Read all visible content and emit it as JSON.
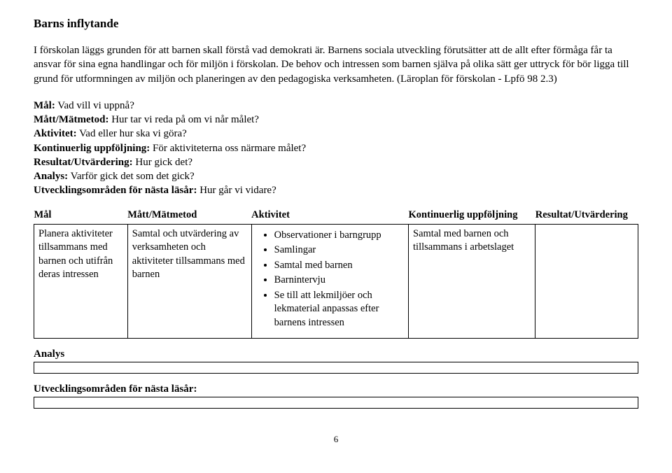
{
  "title": "Barns inflytande",
  "intro": "I förskolan läggs grunden för att barnen skall förstå vad demokrati är. Barnens sociala utveckling förutsätter att de allt efter förmåga får ta ansvar för sina egna handlingar och för miljön i förskolan. De behov och intressen som barnen själva på olika sätt ger uttryck för bör ligga till grund för utformningen av miljön och planeringen av den pedagogiska verksamheten. (Läroplan för förskolan - Lpfö 98 2.3)",
  "definitions": [
    {
      "label": "Mål:",
      "text": " Vad vill vi uppnå?"
    },
    {
      "label": "Mått/Mätmetod:",
      "text": " Hur tar vi reda på om vi når målet?"
    },
    {
      "label": "Aktivitet:",
      "text": " Vad eller hur ska vi göra?"
    },
    {
      "label": "Kontinuerlig uppföljning:",
      "text": " För aktiviteterna oss närmare målet?"
    },
    {
      "label": "Resultat/Utvärdering:",
      "text": " Hur gick det?"
    },
    {
      "label": "Analys:",
      "text": " Varför gick det som det gick?"
    },
    {
      "label": "Utvecklingsområden för nästa läsår:",
      "text": " Hur går vi vidare?"
    }
  ],
  "table": {
    "headers": [
      "Mål",
      "Mått/Mätmetod",
      "Aktivitet",
      "Kontinuerlig uppföljning",
      "Resultat/Utvärdering"
    ],
    "row": {
      "mal": "Planera aktiviteter tillsammans med barnen och utifrån deras intressen",
      "matt": "Samtal och utvärdering av verksamheten och aktiviteter tillsammans med barnen",
      "aktivitet": [
        "Observationer i barngrupp",
        "Samlingar",
        "Samtal med barnen",
        "Barnintervju",
        "Se till att lekmiljöer och lekmaterial anpassas efter barnens intressen"
      ],
      "uppfoljning": "Samtal med barnen och tillsammans i arbetslaget",
      "resultat": ""
    }
  },
  "analys_label": "Analys",
  "utv_label": "Utvecklingsområden för nästa läsår:",
  "page_number": "6"
}
